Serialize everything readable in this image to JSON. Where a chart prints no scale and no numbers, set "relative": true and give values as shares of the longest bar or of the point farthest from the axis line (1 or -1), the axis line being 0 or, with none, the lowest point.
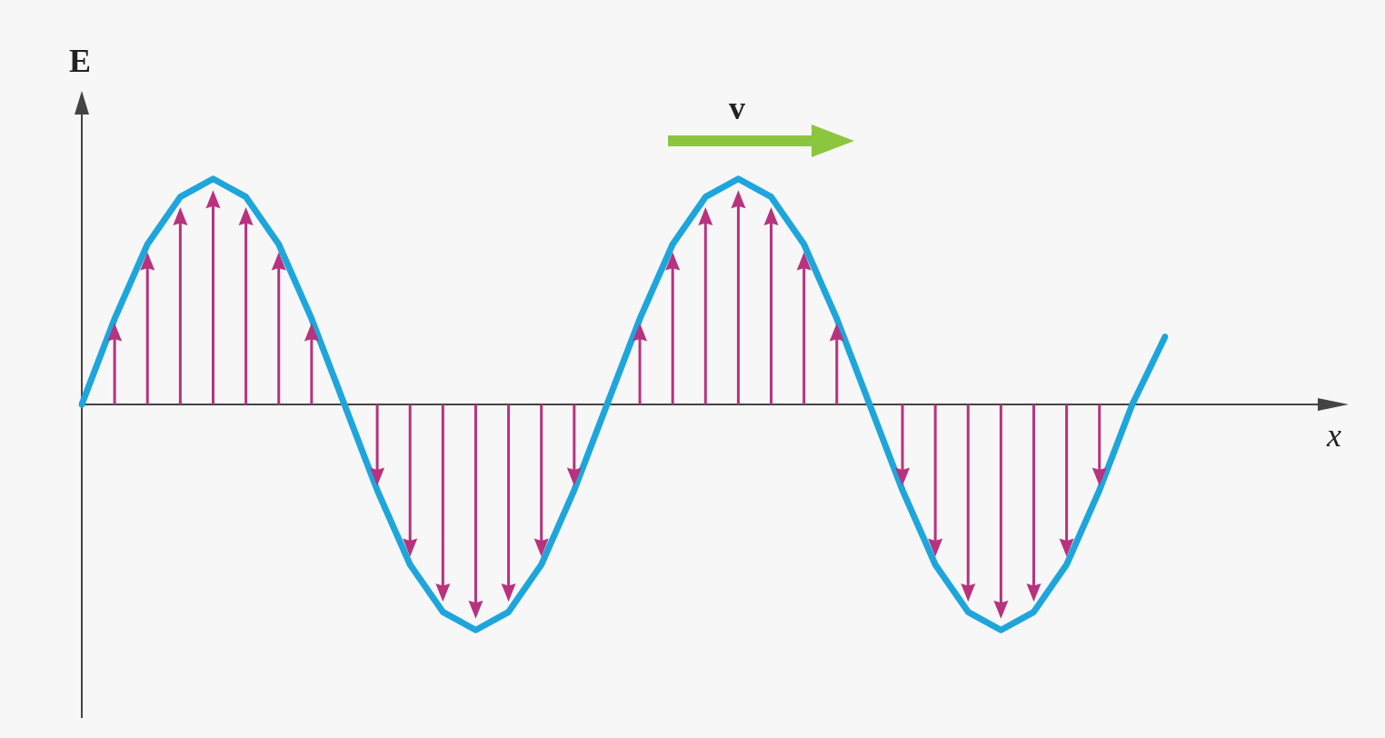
{
  "chart_data": {
    "type": "line",
    "relative": true,
    "xlabel": "x",
    "ylabel": "E",
    "annotations": [
      "v"
    ],
    "tick_labels": false,
    "legend": false,
    "marker": "none",
    "categories": [
      null,
      null,
      null,
      null,
      null,
      null,
      null,
      null,
      null,
      null,
      null,
      null,
      null,
      null,
      null,
      null,
      null,
      null,
      null,
      null,
      null,
      null,
      null,
      null,
      null,
      null,
      null,
      null,
      null,
      null,
      null,
      null,
      null,
      null
    ],
    "series": [
      {
        "color": "#1ea6dc",
        "values": [
          0,
          0.38,
          0.71,
          0.92,
          1,
          0.92,
          0.71,
          0.38,
          0,
          -0.38,
          -0.71,
          -0.92,
          -1,
          -0.92,
          -0.71,
          -0.38,
          0,
          0.38,
          0.71,
          0.92,
          1,
          0.92,
          0.71,
          0.38,
          0,
          -0.38,
          -0.71,
          -0.92,
          -1,
          -0.92,
          -0.71,
          -0.38,
          0,
          0.3
        ]
      }
    ]
  }
}
